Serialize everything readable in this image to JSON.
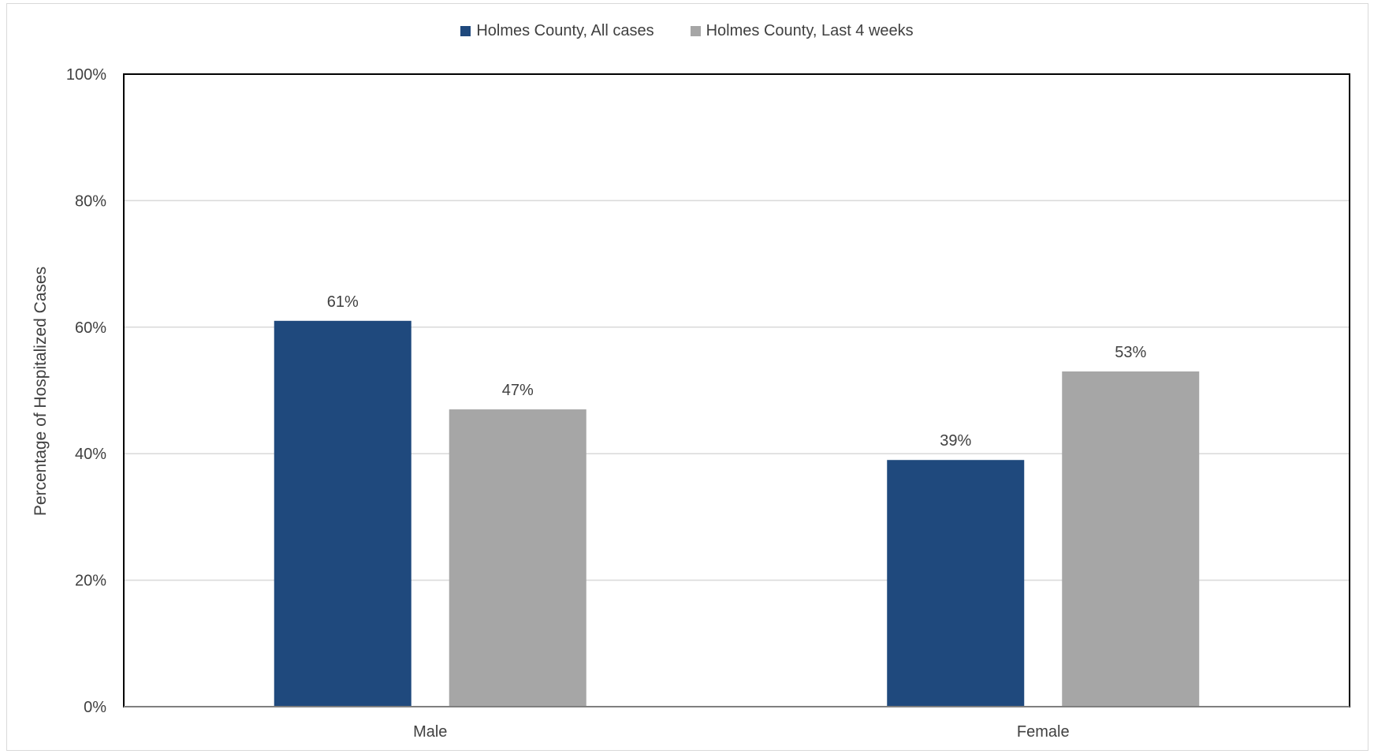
{
  "chart_data": {
    "type": "bar",
    "title": "",
    "xlabel": "",
    "ylabel": "Percentage of Hospitalized Cases",
    "categories": [
      "Male",
      "Female"
    ],
    "series": [
      {
        "name": "Holmes County, All cases",
        "values": [
          61,
          39
        ],
        "labels": [
          "61%",
          "39%"
        ],
        "color": "#1f497d"
      },
      {
        "name": "Holmes County, Last 4 weeks",
        "values": [
          47,
          53
        ],
        "labels": [
          "47%",
          "53%"
        ],
        "color": "#a6a6a6"
      }
    ],
    "ylim": [
      0,
      100
    ],
    "yticks": [
      0,
      20,
      40,
      60,
      80,
      100
    ],
    "ytick_labels": [
      "0%",
      "20%",
      "40%",
      "60%",
      "80%",
      "100%"
    ],
    "grid": true,
    "legend_position": "top-center"
  }
}
